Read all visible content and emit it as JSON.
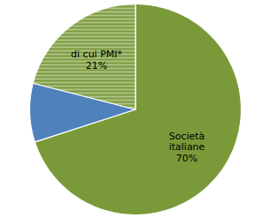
{
  "chart_data": {
    "type": "pie",
    "values": [
      70,
      9,
      21
    ],
    "colors": [
      "#7a9a3a",
      "#4f81bd",
      "#7a9a3a"
    ],
    "value_labels": [
      "Società\nitaliane\n70%",
      null,
      "di cui PMI*\n21%"
    ],
    "data_labels": true
  }
}
